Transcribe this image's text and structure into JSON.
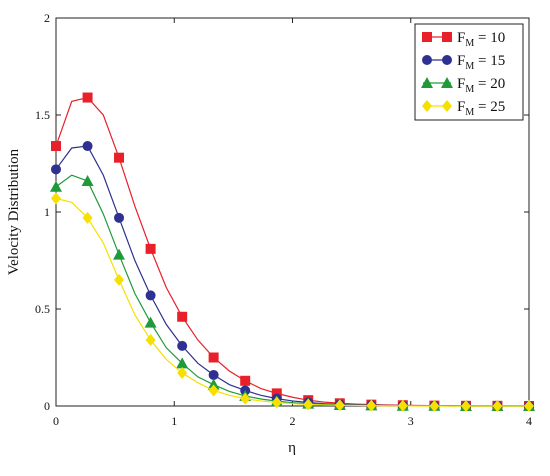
{
  "chart_data": {
    "type": "line",
    "title": "",
    "xlabel": "η",
    "ylabel": "Velocity Distribution",
    "xlim": [
      0,
      4
    ],
    "ylim": [
      0,
      2
    ],
    "x_ticks": [
      0,
      1,
      2,
      3,
      4
    ],
    "x_tick_labels": [
      "0",
      "1",
      "2",
      "3",
      "4"
    ],
    "y_ticks": [
      0,
      0.5,
      1,
      1.5,
      2
    ],
    "y_tick_labels": [
      "0",
      "0.5",
      "1",
      "1.5",
      "2"
    ],
    "grid": false,
    "legend_position": "top-right",
    "x": [
      0.0,
      0.133,
      0.267,
      0.4,
      0.533,
      0.667,
      0.8,
      0.933,
      1.067,
      1.2,
      1.333,
      1.467,
      1.6,
      1.733,
      1.867,
      2.0,
      2.133,
      2.267,
      2.4,
      2.533,
      2.667,
      2.8,
      2.933,
      3.067,
      3.2,
      3.333,
      3.467,
      3.6,
      3.733,
      3.867,
      4.0
    ],
    "series": [
      {
        "name": "F_M = 10",
        "label_base": "F",
        "label_sub": "M",
        "label_rest": " = 10",
        "color": "#e8202a",
        "marker": "square",
        "marker_step": 2,
        "values": [
          1.34,
          1.57,
          1.59,
          1.5,
          1.28,
          1.03,
          0.81,
          0.61,
          0.46,
          0.34,
          0.25,
          0.18,
          0.13,
          0.09,
          0.065,
          0.045,
          0.03,
          0.02,
          0.014,
          0.01,
          0.007,
          0.005,
          0.004,
          0.003,
          0.002,
          0.002,
          0.001,
          0.001,
          0.001,
          0.001,
          0.0
        ]
      },
      {
        "name": "F_M = 15",
        "label_base": "F",
        "label_sub": "M",
        "label_rest": " = 15",
        "color": "#2e3192",
        "marker": "circle",
        "marker_step": 2,
        "values": [
          1.22,
          1.33,
          1.34,
          1.19,
          0.97,
          0.75,
          0.57,
          0.42,
          0.31,
          0.22,
          0.16,
          0.11,
          0.08,
          0.055,
          0.038,
          0.026,
          0.018,
          0.012,
          0.008,
          0.006,
          0.004,
          0.003,
          0.002,
          0.001,
          0.001,
          0.001,
          0.0,
          0.0,
          0.0,
          0.0,
          0.0
        ]
      },
      {
        "name": "F_M = 20",
        "label_base": "F",
        "label_sub": "M",
        "label_rest": " = 20",
        "color": "#1f9a3a",
        "marker": "triangle",
        "marker_step": 2,
        "values": [
          1.13,
          1.19,
          1.16,
          0.99,
          0.78,
          0.58,
          0.43,
          0.3,
          0.22,
          0.15,
          0.11,
          0.075,
          0.052,
          0.036,
          0.025,
          0.017,
          0.012,
          0.008,
          0.005,
          0.004,
          0.003,
          0.002,
          0.001,
          0.001,
          0.001,
          0.0,
          0.0,
          0.0,
          0.0,
          0.0,
          0.0
        ]
      },
      {
        "name": "F_M = 25",
        "label_base": "F",
        "label_sub": "M",
        "label_rest": " = 25",
        "color": "#f5e000",
        "marker": "diamond",
        "marker_step": 2,
        "values": [
          1.07,
          1.05,
          0.97,
          0.84,
          0.65,
          0.47,
          0.34,
          0.24,
          0.17,
          0.12,
          0.08,
          0.055,
          0.038,
          0.026,
          0.018,
          0.012,
          0.008,
          0.005,
          0.004,
          0.003,
          0.002,
          0.001,
          0.001,
          0.0,
          0.0,
          0.0,
          0.0,
          0.0,
          0.0,
          0.0,
          0.0
        ]
      }
    ]
  }
}
